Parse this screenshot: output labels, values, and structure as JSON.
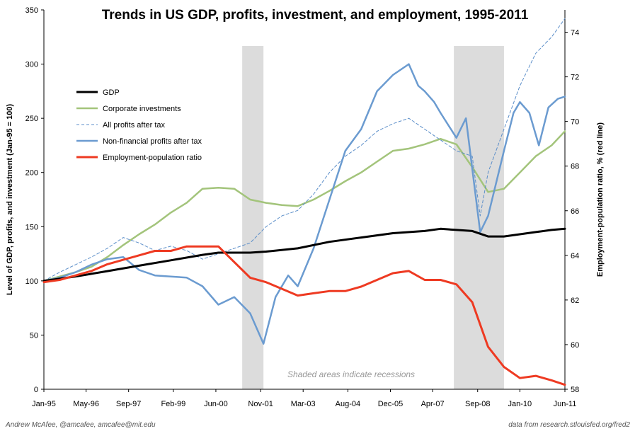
{
  "chart_data": {
    "type": "line",
    "title": "Trends in US GDP, profits, investment, and employment, 1995-2011",
    "ylabel": "Level of GDP, profits, and investment (Jan-95 = 100)",
    "y2label": "Employment-population ratio, % (red line)",
    "xlim": [
      1995.0,
      2011.42
    ],
    "ylim": [
      0,
      350
    ],
    "y2lim": [
      58,
      75
    ],
    "x_ticks": [
      {
        "label": "Jan-95",
        "x": 1995.0
      },
      {
        "label": "May-96",
        "x": 1996.33
      },
      {
        "label": "Sep-97",
        "x": 1997.67
      },
      {
        "label": "Feb-99",
        "x": 1999.08
      },
      {
        "label": "Jun-00",
        "x": 2000.42
      },
      {
        "label": "Nov-01",
        "x": 2001.83
      },
      {
        "label": "Mar-03",
        "x": 2003.17
      },
      {
        "label": "Aug-04",
        "x": 2004.58
      },
      {
        "label": "Dec-05",
        "x": 2005.92
      },
      {
        "label": "Apr-07",
        "x": 2007.25
      },
      {
        "label": "Sep-08",
        "x": 2008.67
      },
      {
        "label": "Jan-10",
        "x": 2010.0
      },
      {
        "label": "Jun-11",
        "x": 2011.42
      }
    ],
    "y_ticks": [
      0,
      50,
      100,
      150,
      200,
      250,
      300,
      350
    ],
    "y2_ticks": [
      58,
      60,
      62,
      64,
      66,
      68,
      70,
      72,
      74
    ],
    "recessions": [
      [
        2001.25,
        2001.92
      ],
      [
        2007.92,
        2009.5
      ]
    ],
    "recession_note": "Shaded areas indicate recessions",
    "legend_position": "top-left",
    "series": [
      {
        "name": "GDP",
        "color": "#000000",
        "style": "solid",
        "axis": "left",
        "x": [
          1995.0,
          1996.0,
          1997.0,
          1998.0,
          1999.0,
          2000.0,
          2000.5,
          2001.0,
          2001.5,
          2002.0,
          2003.0,
          2004.0,
          2005.0,
          2006.0,
          2007.0,
          2007.5,
          2008.0,
          2008.5,
          2009.0,
          2009.5,
          2010.0,
          2010.5,
          2011.0,
          2011.42
        ],
        "values": [
          100,
          104,
          109,
          114,
          119,
          124,
          126,
          126,
          126,
          127,
          130,
          136,
          140,
          144,
          146,
          148,
          147,
          146,
          141,
          141,
          143,
          145,
          147,
          148
        ]
      },
      {
        "name": "Corporate investments",
        "color": "#a3c47b",
        "style": "solid",
        "axis": "left",
        "x": [
          1995.0,
          1995.5,
          1996.0,
          1996.5,
          1997.0,
          1997.5,
          1998.0,
          1998.5,
          1999.0,
          1999.5,
          2000.0,
          2000.5,
          2001.0,
          2001.5,
          2002.0,
          2002.5,
          2003.0,
          2003.5,
          2004.0,
          2004.5,
          2005.0,
          2005.5,
          2006.0,
          2006.5,
          2007.0,
          2007.5,
          2008.0,
          2008.5,
          2009.0,
          2009.5,
          2010.0,
          2010.5,
          2011.0,
          2011.42
        ],
        "values": [
          100,
          104,
          108,
          113,
          122,
          133,
          143,
          152,
          163,
          172,
          185,
          186,
          185,
          175,
          172,
          170,
          169,
          175,
          183,
          192,
          200,
          210,
          220,
          222,
          226,
          231,
          226,
          205,
          182,
          185,
          200,
          215,
          225,
          238
        ]
      },
      {
        "name": "All profits after tax",
        "color": "#5b8ec9",
        "style": "dashed",
        "axis": "left",
        "x": [
          1995.0,
          1995.5,
          1996.0,
          1996.5,
          1997.0,
          1997.5,
          1998.0,
          1998.5,
          1999.0,
          1999.5,
          2000.0,
          2000.5,
          2001.0,
          2001.5,
          2002.0,
          2002.5,
          2003.0,
          2003.5,
          2004.0,
          2004.5,
          2005.0,
          2005.5,
          2006.0,
          2006.5,
          2007.0,
          2007.5,
          2008.0,
          2008.5,
          2008.75,
          2009.0,
          2009.5,
          2010.0,
          2010.5,
          2011.0,
          2011.42
        ],
        "values": [
          100,
          108,
          115,
          122,
          130,
          140,
          135,
          128,
          132,
          128,
          120,
          125,
          130,
          135,
          150,
          160,
          165,
          180,
          200,
          215,
          225,
          238,
          245,
          250,
          240,
          230,
          220,
          215,
          160,
          200,
          240,
          280,
          310,
          325,
          342
        ]
      },
      {
        "name": "Non-financial profits after tax",
        "color": "#6b9bd0",
        "style": "solid",
        "axis": "left",
        "x": [
          1995.0,
          1995.5,
          1996.0,
          1996.5,
          1997.0,
          1997.5,
          1998.0,
          1998.5,
          1999.0,
          1999.5,
          2000.0,
          2000.5,
          2001.0,
          2001.5,
          2001.92,
          2002.3,
          2002.7,
          2003.0,
          2003.5,
          2004.0,
          2004.5,
          2005.0,
          2005.5,
          2006.0,
          2006.5,
          2006.8,
          2007.0,
          2007.3,
          2007.5,
          2008.0,
          2008.3,
          2008.6,
          2008.75,
          2009.0,
          2009.5,
          2009.8,
          2010.0,
          2010.3,
          2010.6,
          2010.9,
          2011.2,
          2011.42
        ],
        "values": [
          100,
          103,
          108,
          115,
          120,
          122,
          110,
          105,
          104,
          103,
          95,
          78,
          85,
          70,
          42,
          85,
          105,
          95,
          130,
          175,
          220,
          240,
          275,
          290,
          300,
          280,
          275,
          265,
          255,
          232,
          250,
          180,
          145,
          160,
          220,
          255,
          265,
          255,
          225,
          260,
          268,
          270
        ]
      },
      {
        "name": "Employment-population ratio",
        "color": "#ee3a22",
        "style": "solid",
        "axis": "right",
        "x": [
          1995.0,
          1995.5,
          1996.0,
          1996.5,
          1997.0,
          1997.5,
          1998.0,
          1998.5,
          1999.0,
          1999.5,
          2000.0,
          2000.5,
          2001.0,
          2001.5,
          2002.0,
          2002.5,
          2003.0,
          2003.5,
          2004.0,
          2004.5,
          2005.0,
          2005.5,
          2006.0,
          2006.5,
          2007.0,
          2007.5,
          2008.0,
          2008.5,
          2009.0,
          2009.5,
          2010.0,
          2010.5,
          2011.0,
          2011.42
        ],
        "values": [
          62.8,
          62.9,
          63.1,
          63.3,
          63.6,
          63.8,
          64.0,
          64.2,
          64.2,
          64.4,
          64.4,
          64.4,
          63.7,
          63.0,
          62.8,
          62.5,
          62.2,
          62.3,
          62.4,
          62.4,
          62.6,
          62.9,
          63.2,
          63.3,
          62.9,
          62.9,
          62.7,
          61.9,
          59.9,
          59.0,
          58.5,
          58.6,
          58.4,
          58.2
        ]
      }
    ]
  },
  "footer": {
    "left": "Andrew McAfee, @amcafee, amcafee@mit.edu",
    "right": "data from research.stlouisfed.org/fred2"
  }
}
